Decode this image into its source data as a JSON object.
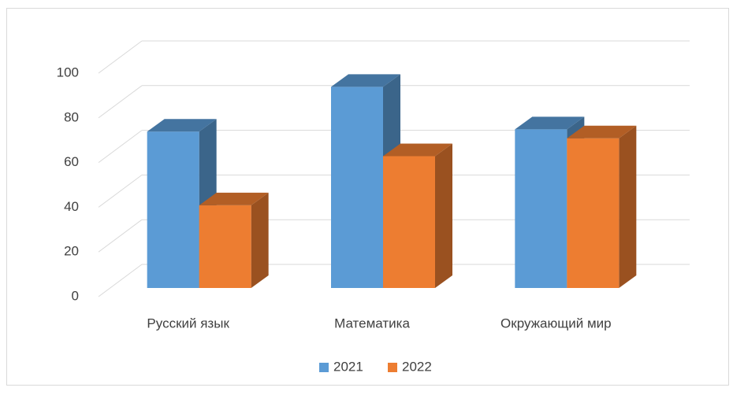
{
  "chart_data": {
    "type": "bar3d",
    "categories": [
      "Русский язык",
      "Математика",
      "Окружающий мир"
    ],
    "series": [
      {
        "name": "2021",
        "color": "#5b9bd5",
        "values": [
          70,
          90,
          71
        ]
      },
      {
        "name": "2022",
        "color": "#ed7d31",
        "values": [
          37,
          59,
          67
        ]
      }
    ],
    "ylim": [
      0,
      100
    ],
    "yticks": [
      0,
      20,
      40,
      60,
      80,
      100
    ],
    "grid": true,
    "legend": "bottom"
  }
}
